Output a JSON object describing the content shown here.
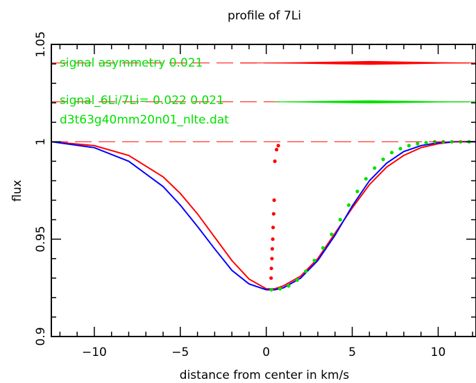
{
  "chart_data": {
    "type": "line",
    "title": "profile of 7Li",
    "xlabel": "distance from center in km/s",
    "ylabel": "flux",
    "xlim": [
      -12.5,
      12.2
    ],
    "ylim": [
      0.9,
      1.05
    ],
    "x_ticks": [
      -10,
      -5,
      0,
      5,
      10
    ],
    "x_tick_labels": [
      "−10",
      "−5",
      "0",
      "5",
      "10"
    ],
    "y_ticks": [
      0.9,
      0.95,
      1.0,
      1.05
    ],
    "y_tick_labels": [
      "0.9",
      "0.95",
      "1",
      "1.05"
    ],
    "grid": false,
    "annotations": [
      {
        "text": "signal asymmetry  0.021",
        "color": "#00e000"
      },
      {
        "text": "signal_6Li/7Li= 0.022 0.021",
        "color": "#00e000"
      },
      {
        "text": "d3t63g40mm20n01_nlte.dat",
        "color": "#00e000"
      }
    ],
    "series": [
      {
        "style": "solid-line",
        "color": "#ff0000",
        "x": [
          -12.5,
          -10,
          -8,
          -6,
          -5,
          -4,
          -3,
          -2,
          -1,
          0,
          0.5,
          1,
          2,
          3,
          4,
          5,
          6,
          7,
          8,
          9,
          10,
          11,
          12.2
        ],
        "y": [
          1.0,
          0.998,
          0.993,
          0.982,
          0.9735,
          0.963,
          0.951,
          0.939,
          0.9295,
          0.9245,
          0.9245,
          0.926,
          0.931,
          0.94,
          0.953,
          0.966,
          0.978,
          0.987,
          0.993,
          0.997,
          0.999,
          1.0,
          1.0
        ]
      },
      {
        "style": "solid-line",
        "color": "#0000ff",
        "x": [
          -12.5,
          -10,
          -8,
          -6,
          -5,
          -4,
          -3,
          -2,
          -1,
          0,
          0.5,
          1,
          2,
          3,
          4,
          5,
          6,
          7,
          8,
          9,
          10,
          11,
          12.2
        ],
        "y": [
          1.0,
          0.997,
          0.99,
          0.977,
          0.9675,
          0.9565,
          0.945,
          0.934,
          0.927,
          0.924,
          0.924,
          0.925,
          0.93,
          0.939,
          0.952,
          0.967,
          0.98,
          0.989,
          0.995,
          0.998,
          0.9995,
          1.0,
          1.0
        ]
      },
      {
        "style": "markers",
        "color": "#00e000",
        "x": [
          0.3,
          0.8,
          1.3,
          1.8,
          2.3,
          2.8,
          3.3,
          3.8,
          4.3,
          4.8,
          5.3,
          5.8,
          6.3,
          6.8,
          7.3,
          7.8,
          8.3,
          8.8,
          9.3,
          9.8,
          10.3,
          10.8,
          11.3,
          11.8
        ],
        "y": [
          0.924,
          0.9245,
          0.926,
          0.929,
          0.9335,
          0.939,
          0.9455,
          0.9525,
          0.96,
          0.9675,
          0.9745,
          0.981,
          0.9865,
          0.991,
          0.9945,
          0.9965,
          0.998,
          0.999,
          0.9995,
          1.0,
          1.0,
          1.0,
          1.0,
          1.0
        ]
      },
      {
        "style": "markers",
        "color": "#ff0000",
        "x": [
          0.28,
          0.3,
          0.33,
          0.35,
          0.38,
          0.4,
          0.43,
          0.46,
          0.5,
          0.6,
          0.7
        ],
        "y": [
          0.93,
          0.935,
          0.94,
          0.945,
          0.95,
          0.956,
          0.963,
          0.97,
          0.99,
          0.996,
          0.998
        ]
      },
      {
        "style": "dashed-line",
        "color": "#ff0000",
        "x": [
          -12.5,
          12.2
        ],
        "y": [
          1.0,
          1.0
        ]
      },
      {
        "style": "dashed-line",
        "color": "#ff0000",
        "x": [
          -12.5,
          12.2
        ],
        "y": [
          1.0405,
          1.0405
        ]
      },
      {
        "style": "dashed-line",
        "color": "#ff0000",
        "x": [
          -12.5,
          12.2
        ],
        "y": [
          1.0205,
          1.0205
        ]
      },
      {
        "style": "filled-band",
        "color": "#ff0000",
        "x": [
          -1.5,
          0,
          2,
          4,
          6,
          8,
          10,
          12.2
        ],
        "y": [
          1.0405,
          1.0405,
          1.0403,
          1.04,
          1.0397,
          1.04,
          1.0403,
          1.0405
        ]
      },
      {
        "style": "filled-band",
        "color": "#00e000",
        "x": [
          0.5,
          2,
          4,
          6,
          8,
          10,
          12.2
        ],
        "y": [
          1.0205,
          1.0204,
          1.0201,
          1.0199,
          1.0201,
          1.0204,
          1.0205
        ]
      }
    ]
  }
}
